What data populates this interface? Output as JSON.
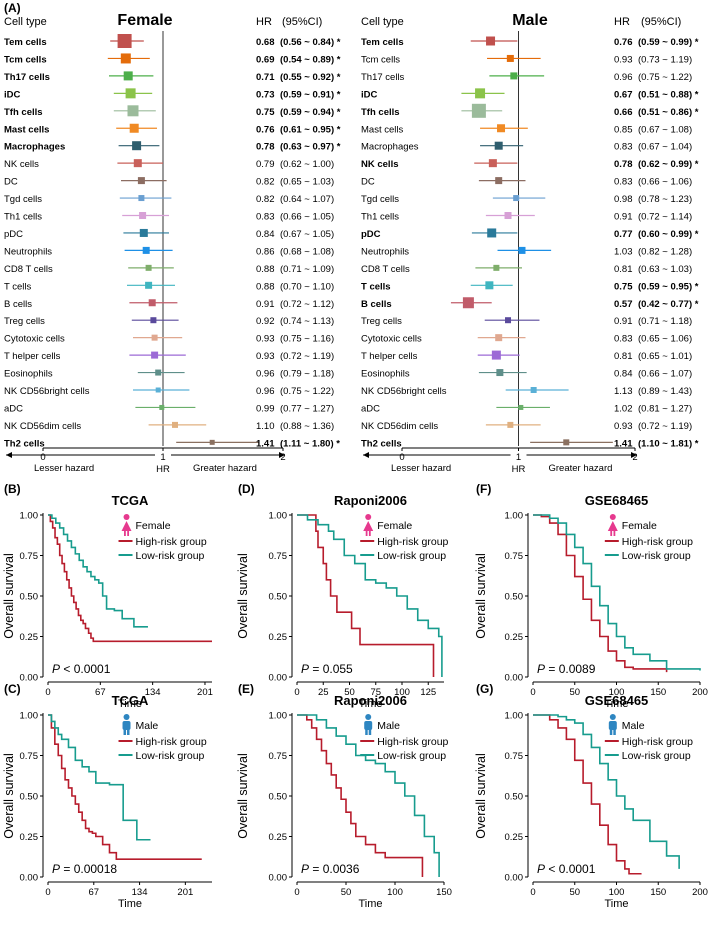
{
  "forest": {
    "panel_label": "(A)",
    "col_cell_type": "Cell type",
    "col_hr": "HR",
    "col_ci": "(95%CI)",
    "axis": {
      "min_label": "0",
      "mid_label": "1",
      "max_label": "2",
      "hr_label": "HR",
      "lesser": "Lesser hazard",
      "greater": "Greater hazard",
      "xmin": 0,
      "xmax": 2
    },
    "cell_types": [
      "Tem cells",
      "Tcm cells",
      "Th17 cells",
      "iDC",
      "Tfh cells",
      "Mast cells",
      "Macrophages",
      "NK cells",
      "DC",
      "Tgd cells",
      "Th1 cells",
      "pDC",
      "Neutrophils",
      "CD8 T cells",
      "T cells",
      "B cells",
      "Treg cells",
      "Cytotoxic cells",
      "T helper cells",
      "Eosinophils",
      "NK CD56bright cells",
      "aDC",
      "NK CD56dim cells",
      "Th2 cells"
    ],
    "colors": [
      "#c0504d",
      "#e46c0a",
      "#4daf4a",
      "#8bc34a",
      "#9bbb9b",
      "#f08a24",
      "#2f5e6e",
      "#c9605a",
      "#8c6d62",
      "#6a9fd1",
      "#d7a0d6",
      "#2a7a9a",
      "#1e90e6",
      "#7fae6b",
      "#3fb5c0",
      "#c15c6a",
      "#5a4a9c",
      "#e0a890",
      "#9c6ad6",
      "#5f8f8a",
      "#5ab0d6",
      "#6aaf6a",
      "#e0b080",
      "#8a7060"
    ],
    "panels": [
      {
        "title": "Female",
        "hr": [
          0.68,
          0.69,
          0.71,
          0.73,
          0.75,
          0.76,
          0.78,
          0.79,
          0.82,
          0.82,
          0.83,
          0.84,
          0.86,
          0.88,
          0.88,
          0.91,
          0.92,
          0.93,
          0.93,
          0.96,
          0.96,
          0.99,
          1.1,
          1.41
        ],
        "lo": [
          0.56,
          0.54,
          0.55,
          0.59,
          0.59,
          0.61,
          0.63,
          0.62,
          0.65,
          0.64,
          0.66,
          0.67,
          0.68,
          0.71,
          0.7,
          0.72,
          0.74,
          0.75,
          0.72,
          0.79,
          0.75,
          0.77,
          0.88,
          1.11
        ],
        "hi": [
          0.84,
          0.89,
          0.92,
          0.91,
          0.94,
          0.95,
          0.97,
          1.0,
          1.03,
          1.07,
          1.05,
          1.05,
          1.08,
          1.09,
          1.1,
          1.12,
          1.13,
          1.16,
          1.19,
          1.18,
          1.22,
          1.27,
          1.36,
          1.8
        ],
        "size": [
          14,
          10,
          9,
          10,
          11,
          9,
          9,
          8,
          7,
          6,
          7,
          8,
          7,
          6,
          7,
          7,
          6,
          6,
          7,
          6,
          5,
          5,
          6,
          5
        ],
        "sig": [
          true,
          true,
          true,
          true,
          true,
          true,
          true,
          false,
          false,
          false,
          false,
          false,
          false,
          false,
          false,
          false,
          false,
          false,
          false,
          false,
          false,
          false,
          false,
          true
        ],
        "hr_text": [
          "0.68",
          "0.69",
          "0.71",
          "0.73",
          "0.75",
          "0.76",
          "0.78",
          "0.79",
          "0.82",
          "0.82",
          "0.83",
          "0.84",
          "0.86",
          "0.88",
          "0.88",
          "0.91",
          "0.92",
          "0.93",
          "0.93",
          "0.96",
          "0.96",
          "0.99",
          "1.10",
          "1.41"
        ],
        "ci_text": [
          "(0.56 ~ 0.84)",
          "(0.54 ~ 0.89)",
          "(0.55 ~ 0.92)",
          "(0.59 ~ 0.91)",
          "(0.59 ~ 0.94)",
          "(0.61 ~ 0.95)",
          "(0.63 ~ 0.97)",
          "(0.62 ~ 1.00)",
          "(0.65 ~ 1.03)",
          "(0.64 ~ 1.07)",
          "(0.66 ~ 1.05)",
          "(0.67 ~ 1.05)",
          "(0.68 ~ 1.08)",
          "(0.71 ~ 1.09)",
          "(0.70 ~ 1.10)",
          "(0.72 ~ 1.12)",
          "(0.74 ~ 1.13)",
          "(0.75 ~ 1.16)",
          "(0.72 ~ 1.19)",
          "(0.79 ~ 1.18)",
          "(0.75 ~ 1.22)",
          "(0.77 ~ 1.27)",
          "(0.88 ~ 1.36)",
          "(1.11 ~ 1.80)"
        ]
      },
      {
        "title": "Male",
        "hr": [
          0.76,
          0.93,
          0.96,
          0.67,
          0.66,
          0.85,
          0.83,
          0.78,
          0.83,
          0.98,
          0.91,
          0.77,
          1.03,
          0.81,
          0.75,
          0.57,
          0.91,
          0.83,
          0.81,
          0.84,
          1.13,
          1.02,
          0.93,
          1.41
        ],
        "lo": [
          0.59,
          0.73,
          0.75,
          0.51,
          0.51,
          0.67,
          0.67,
          0.62,
          0.66,
          0.78,
          0.72,
          0.6,
          0.82,
          0.63,
          0.59,
          0.42,
          0.71,
          0.65,
          0.65,
          0.66,
          0.89,
          0.81,
          0.72,
          1.1
        ],
        "hi": [
          0.99,
          1.19,
          1.22,
          0.88,
          0.86,
          1.08,
          1.04,
          0.99,
          1.06,
          1.23,
          1.14,
          0.99,
          1.28,
          1.03,
          0.95,
          0.77,
          1.18,
          1.06,
          1.01,
          1.07,
          1.43,
          1.27,
          1.19,
          1.81
        ],
        "size": [
          9,
          7,
          7,
          10,
          14,
          8,
          8,
          8,
          7,
          6,
          7,
          9,
          7,
          6,
          8,
          11,
          6,
          7,
          9,
          7,
          6,
          5,
          6,
          6
        ],
        "sig": [
          true,
          false,
          false,
          true,
          true,
          false,
          false,
          true,
          false,
          false,
          false,
          true,
          false,
          false,
          true,
          true,
          false,
          false,
          false,
          false,
          false,
          false,
          false,
          true
        ],
        "hr_text": [
          "0.76",
          "0.93",
          "0.96",
          "0.67",
          "0.66",
          "0.85",
          "0.83",
          "0.78",
          "0.83",
          "0.98",
          "0.91",
          "0.77",
          "1.03",
          "0.81",
          "0.75",
          "0.57",
          "0.91",
          "0.83",
          "0.81",
          "0.84",
          "1.13",
          "1.02",
          "0.93",
          "1.41"
        ],
        "ci_text": [
          "(0.59 ~ 0.99)",
          "(0.73 ~ 1.19)",
          "(0.75 ~ 1.22)",
          "(0.51 ~ 0.88)",
          "(0.51 ~ 0.86)",
          "(0.67 ~ 1.08)",
          "(0.67 ~ 1.04)",
          "(0.62 ~ 0.99)",
          "(0.66 ~ 1.06)",
          "(0.78 ~ 1.23)",
          "(0.72 ~ 1.14)",
          "(0.60 ~ 0.99)",
          "(0.82 ~ 1.28)",
          "(0.63 ~ 1.03)",
          "(0.59 ~ 0.95)",
          "(0.42 ~ 0.77)",
          "(0.71 ~ 1.18)",
          "(0.65 ~ 1.06)",
          "(0.65 ~ 1.01)",
          "(0.66 ~ 1.07)",
          "(0.89 ~ 1.43)",
          "(0.81 ~ 1.27)",
          "(0.72 ~ 1.19)",
          "(1.10 ~ 1.81)"
        ]
      }
    ]
  },
  "km_common": {
    "ylabel": "Overall survival",
    "xlabel": "Time",
    "yticks": [
      "0.00",
      "0.25",
      "0.50",
      "0.75",
      "1.00"
    ],
    "high_label": "High-risk group",
    "low_label": "Low-risk group",
    "female_label": "Female",
    "male_label": "Male",
    "high_color": "#b71c2c",
    "low_color": "#179c8e",
    "female_color": "#e6398e",
    "male_color": "#2e86c1"
  },
  "chart_data": [
    {
      "type": "forest",
      "title": "Female",
      "xlabel": "HR",
      "xlim": [
        0,
        2
      ],
      "reference": 1,
      "series": "see forest.panels[0]"
    },
    {
      "type": "forest",
      "title": "Male",
      "xlabel": "HR",
      "xlim": [
        0,
        2
      ],
      "reference": 1,
      "series": "see forest.panels[1]"
    },
    {
      "type": "line",
      "panel": "(B)",
      "title": "TCGA",
      "sex": "Female",
      "p_text": "P",
      "p_value": "< 0.0001",
      "xlim": [
        0,
        210
      ],
      "ylim": [
        0,
        1
      ],
      "xticks": [
        0,
        67,
        134,
        201
      ],
      "xtick_labels": [
        "0",
        "67",
        "134",
        "201"
      ],
      "series": [
        {
          "name": "High-risk group",
          "x": [
            0,
            3,
            6,
            9,
            12,
            15,
            18,
            21,
            24,
            27,
            30,
            33,
            36,
            39,
            42,
            45,
            48,
            52,
            55,
            58,
            61,
            64,
            210
          ],
          "y": [
            1,
            0.96,
            0.92,
            0.86,
            0.82,
            0.75,
            0.7,
            0.65,
            0.6,
            0.55,
            0.5,
            0.46,
            0.42,
            0.38,
            0.35,
            0.33,
            0.3,
            0.27,
            0.24,
            0.22,
            0.22,
            0.22,
            0.22
          ]
        },
        {
          "name": "Low-risk group",
          "x": [
            0,
            5,
            10,
            15,
            20,
            25,
            30,
            35,
            40,
            45,
            50,
            55,
            60,
            65,
            70,
            75,
            85,
            95,
            110,
            128
          ],
          "y": [
            1,
            0.98,
            0.95,
            0.92,
            0.88,
            0.84,
            0.8,
            0.76,
            0.72,
            0.68,
            0.65,
            0.62,
            0.6,
            0.58,
            0.5,
            0.42,
            0.41,
            0.36,
            0.31,
            0.31
          ]
        }
      ]
    },
    {
      "type": "line",
      "panel": "(D)",
      "title": "Raponi2006",
      "sex": "Female",
      "p_text": "P",
      "p_value": "= 0.055",
      "xlim": [
        0,
        140
      ],
      "ylim": [
        0,
        1
      ],
      "xticks": [
        0,
        25,
        50,
        75,
        100,
        125
      ],
      "xtick_labels": [
        "0",
        "25",
        "50",
        "75",
        "100",
        "125"
      ],
      "series": [
        {
          "name": "High-risk group",
          "x": [
            0,
            12,
            18,
            20,
            25,
            28,
            32,
            38,
            45,
            52,
            60,
            65,
            75,
            100,
            125,
            130
          ],
          "y": [
            1,
            1,
            0.9,
            0.8,
            0.7,
            0.6,
            0.5,
            0.4,
            0.4,
            0.3,
            0.2,
            0.2,
            0.2,
            0.2,
            0.2,
            0
          ]
        },
        {
          "name": "Low-risk group",
          "x": [
            0,
            10,
            20,
            30,
            35,
            45,
            55,
            65,
            75,
            85,
            95,
            105,
            115,
            125,
            135,
            138
          ],
          "y": [
            1,
            0.97,
            0.94,
            0.9,
            0.85,
            0.75,
            0.7,
            0.6,
            0.58,
            0.55,
            0.5,
            0.42,
            0.35,
            0.3,
            0.25,
            0
          ]
        }
      ]
    },
    {
      "type": "line",
      "panel": "(F)",
      "title": "GSE68465",
      "sex": "Female",
      "p_text": "P",
      "p_value": "= 0.0089",
      "xlim": [
        0,
        200
      ],
      "ylim": [
        0,
        1
      ],
      "xticks": [
        0,
        50,
        100,
        150,
        200
      ],
      "xtick_labels": [
        "0",
        "50",
        "100",
        "150",
        "200"
      ],
      "series": [
        {
          "name": "High-risk group",
          "x": [
            0,
            10,
            20,
            30,
            40,
            50,
            60,
            70,
            80,
            90,
            100,
            110,
            120,
            140,
            160
          ],
          "y": [
            1,
            0.99,
            0.95,
            0.88,
            0.75,
            0.62,
            0.48,
            0.35,
            0.25,
            0.16,
            0.1,
            0.06,
            0.05,
            0.05,
            0.03
          ]
        },
        {
          "name": "Low-risk group",
          "x": [
            0,
            10,
            20,
            30,
            40,
            50,
            60,
            70,
            80,
            90,
            100,
            110,
            120,
            140,
            160,
            200
          ],
          "y": [
            1,
            1,
            0.98,
            0.95,
            0.88,
            0.8,
            0.7,
            0.56,
            0.44,
            0.33,
            0.25,
            0.18,
            0.14,
            0.1,
            0.05,
            0.04
          ]
        }
      ]
    },
    {
      "type": "line",
      "panel": "(C)",
      "title": "TCGA",
      "sex": "Male",
      "p_text": "P",
      "p_value": "= 0.00018",
      "xlim": [
        0,
        240
      ],
      "ylim": [
        0,
        1
      ],
      "xticks": [
        0,
        67,
        134,
        201
      ],
      "xtick_labels": [
        "0",
        "67",
        "134",
        "201"
      ],
      "series": [
        {
          "name": "High-risk group",
          "x": [
            0,
            5,
            10,
            15,
            20,
            25,
            30,
            35,
            40,
            45,
            50,
            55,
            60,
            65,
            70,
            80,
            90,
            100,
            130,
            200,
            225
          ],
          "y": [
            1,
            0.92,
            0.82,
            0.75,
            0.67,
            0.6,
            0.55,
            0.5,
            0.45,
            0.4,
            0.35,
            0.3,
            0.28,
            0.27,
            0.25,
            0.2,
            0.15,
            0.11,
            0.11,
            0.11,
            0.11
          ]
        },
        {
          "name": "Low-risk group",
          "x": [
            0,
            5,
            10,
            15,
            20,
            30,
            40,
            50,
            60,
            70,
            80,
            90,
            100,
            110,
            120,
            130,
            150
          ],
          "y": [
            1,
            0.96,
            0.92,
            0.88,
            0.85,
            0.8,
            0.72,
            0.68,
            0.65,
            0.58,
            0.58,
            0.57,
            0.57,
            0.35,
            0.35,
            0.23,
            0.23
          ]
        }
      ]
    },
    {
      "type": "line",
      "panel": "(E)",
      "title": "Raponi2006",
      "sex": "Male",
      "p_text": "P",
      "p_value": "= 0.0036",
      "xlim": [
        0,
        150
      ],
      "ylim": [
        0,
        1
      ],
      "xticks": [
        0,
        50,
        100,
        150
      ],
      "xtick_labels": [
        "0",
        "50",
        "100",
        "150"
      ],
      "series": [
        {
          "name": "High-risk group",
          "x": [
            0,
            10,
            15,
            20,
            25,
            30,
            35,
            40,
            45,
            50,
            55,
            60,
            70,
            80,
            90,
            100,
            115,
            128
          ],
          "y": [
            1,
            0.97,
            0.92,
            0.85,
            0.78,
            0.7,
            0.63,
            0.55,
            0.48,
            0.4,
            0.33,
            0.25,
            0.2,
            0.15,
            0.12,
            0.12,
            0.12,
            0
          ]
        },
        {
          "name": "Low-risk group",
          "x": [
            0,
            15,
            20,
            30,
            40,
            50,
            60,
            70,
            80,
            90,
            100,
            110,
            120,
            130,
            140,
            145
          ],
          "y": [
            1,
            1,
            0.97,
            0.92,
            0.87,
            0.82,
            0.75,
            0.72,
            0.7,
            0.65,
            0.58,
            0.5,
            0.38,
            0.25,
            0.15,
            0
          ]
        }
      ]
    },
    {
      "type": "line",
      "panel": "(G)",
      "title": "GSE68465",
      "sex": "Male",
      "p_text": "P",
      "p_value": "< 0.0001",
      "xlim": [
        0,
        200
      ],
      "ylim": [
        0,
        1
      ],
      "xticks": [
        0,
        50,
        100,
        150,
        200
      ],
      "xtick_labels": [
        "0",
        "50",
        "100",
        "150",
        "200"
      ],
      "series": [
        {
          "name": "High-risk group",
          "x": [
            0,
            10,
            20,
            30,
            40,
            50,
            60,
            70,
            80,
            90,
            100,
            110,
            115,
            130
          ],
          "y": [
            1,
            1,
            0.97,
            0.92,
            0.85,
            0.72,
            0.58,
            0.45,
            0.32,
            0.2,
            0.1,
            0.05,
            0.02,
            0.02
          ]
        },
        {
          "name": "Low-risk group",
          "x": [
            0,
            10,
            20,
            30,
            40,
            50,
            60,
            70,
            80,
            90,
            100,
            110,
            120,
            140,
            160,
            175
          ],
          "y": [
            1,
            1,
            1,
            0.99,
            0.97,
            0.95,
            0.88,
            0.8,
            0.7,
            0.6,
            0.5,
            0.42,
            0.35,
            0.22,
            0.13,
            0.05
          ]
        }
      ]
    }
  ],
  "km_panel_labels": [
    "(B)",
    "(D)",
    "(F)",
    "(C)",
    "(E)",
    "(G)"
  ]
}
